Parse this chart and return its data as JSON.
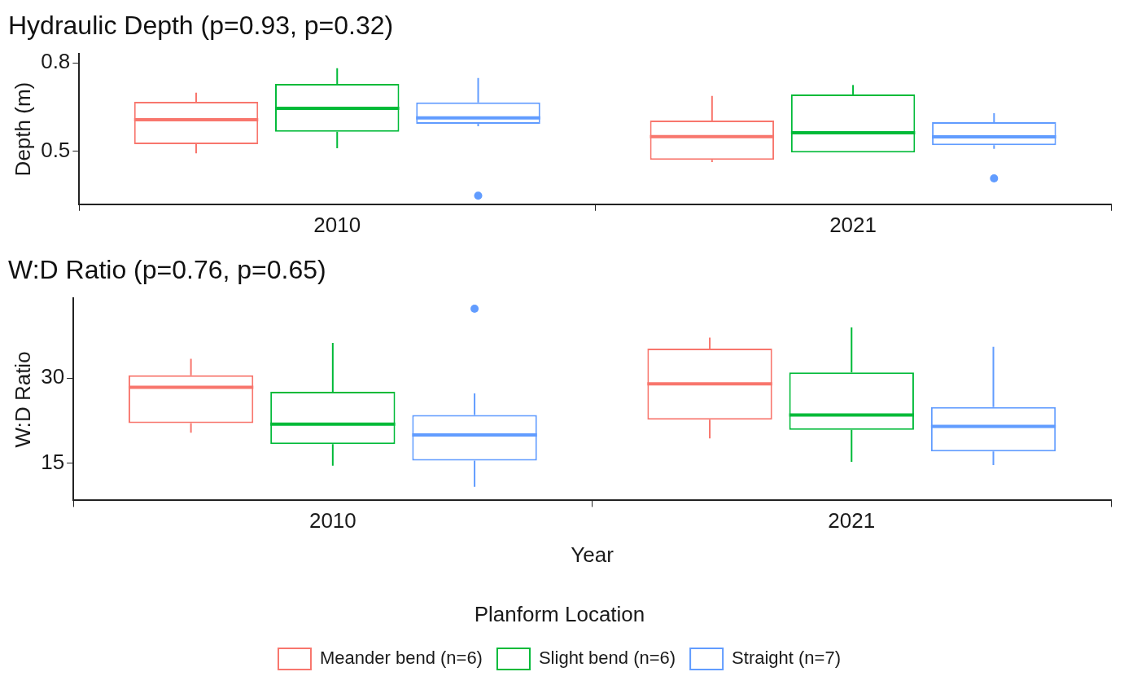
{
  "chart_data": [
    {
      "type": "box",
      "title": "Hydraulic Depth (p=0.93, p=0.32)",
      "ylabel": "Depth (m)",
      "categories": [
        "2010",
        "2021"
      ],
      "ylim": [
        0.32,
        0.83
      ],
      "yticks": [
        0.5,
        0.8
      ],
      "grid": false,
      "legend": false,
      "series": [
        {
          "color": "#f8766d",
          "boxes": [
            {
              "low": 0.493,
              "q1": 0.524,
              "median": 0.607,
              "q3": 0.668,
              "high": 0.699
            },
            {
              "low": 0.463,
              "q1": 0.471,
              "median": 0.55,
              "q3": 0.604,
              "high": 0.688
            }
          ]
        },
        {
          "color": "#00ba38",
          "boxes": [
            {
              "low": 0.51,
              "q1": 0.566,
              "median": 0.646,
              "q3": 0.729,
              "high": 0.782
            },
            {
              "low": 0.496,
              "q1": 0.496,
              "median": 0.563,
              "q3": 0.693,
              "high": 0.725
            }
          ]
        },
        {
          "color": "#619cff",
          "boxes": [
            {
              "low": 0.585,
              "q1": 0.593,
              "median": 0.613,
              "q3": 0.666,
              "high": 0.749,
              "outliers": [
                0.349
              ]
            },
            {
              "low": 0.508,
              "q1": 0.521,
              "median": 0.549,
              "q3": 0.599,
              "high": 0.629,
              "outliers": [
                0.408
              ]
            }
          ]
        }
      ]
    },
    {
      "type": "box",
      "title": "W:D Ratio (p=0.76, p=0.65)",
      "xlabel": "Year",
      "ylabel": "W:D Ratio",
      "categories": [
        "2010",
        "2021"
      ],
      "ylim": [
        8.5,
        44
      ],
      "yticks": [
        15,
        30
      ],
      "grid": false,
      "legend": "bottom",
      "legend_title": "Planform Location",
      "series": [
        {
          "name": "Meander bend (n=6)",
          "color": "#f8766d",
          "boxes": [
            {
              "low": 20.4,
              "q1": 22.1,
              "median": 28.4,
              "q3": 30.5,
              "high": 33.4
            },
            {
              "low": 19.4,
              "q1": 22.7,
              "median": 29.0,
              "q3": 35.2,
              "high": 37.1
            }
          ]
        },
        {
          "name": "Slight bend (n=6)",
          "color": "#00ba38",
          "boxes": [
            {
              "low": 14.6,
              "q1": 18.4,
              "median": 21.9,
              "q3": 27.6,
              "high": 36.2
            },
            {
              "low": 15.3,
              "q1": 20.9,
              "median": 23.5,
              "q3": 31.0,
              "high": 38.9
            }
          ]
        },
        {
          "name": "Straight (n=7)",
          "color": "#619cff",
          "boxes": [
            {
              "low": 10.9,
              "q1": 15.5,
              "median": 20.0,
              "q3": 23.5,
              "high": 27.3,
              "outliers": [
                42.2
              ]
            },
            {
              "low": 14.7,
              "q1": 17.1,
              "median": 21.5,
              "q3": 24.9,
              "high": 35.5
            }
          ]
        }
      ]
    }
  ]
}
